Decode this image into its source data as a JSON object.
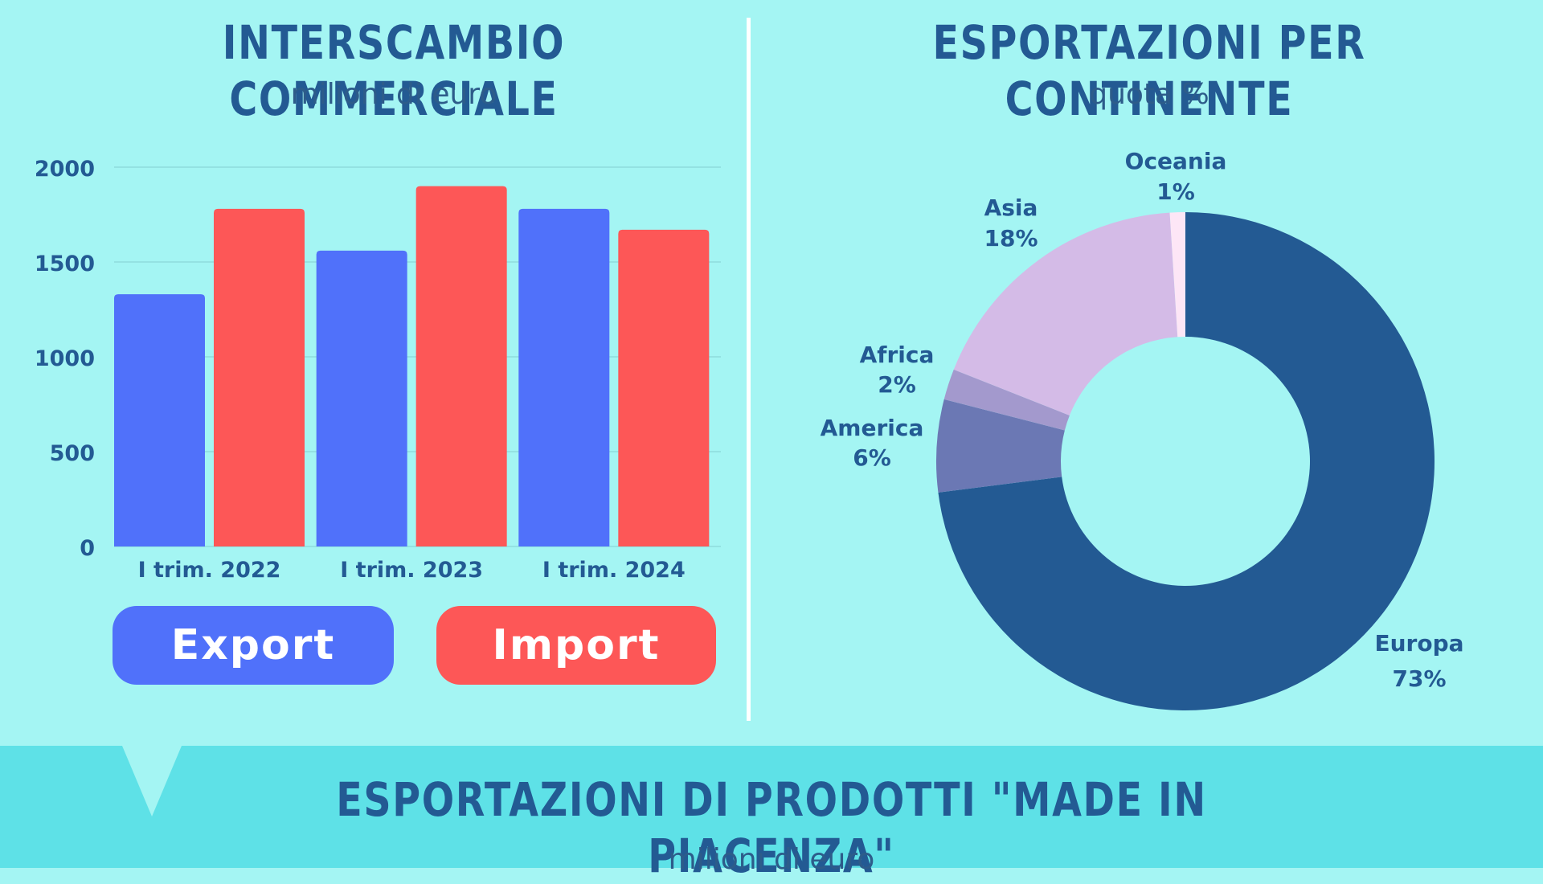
{
  "left_panel": {
    "title": "INTERSCAMBIO COMMERCIALE",
    "subtitle": "milioni di euro"
  },
  "right_panel": {
    "title": "ESPORTAZIONI PER CONTINENTE",
    "subtitle": "quota %"
  },
  "bottom_section": {
    "title": "ESPORTAZIONI DI PRODOTTI \"MADE IN PIACENZA\"",
    "subtitle": "milioni di euro"
  },
  "legend": {
    "export_label": "Export",
    "import_label": "Import"
  },
  "colors": {
    "export": "#5071fa",
    "import": "#fd5757",
    "europa": "#235a93",
    "america": "#6b78b4",
    "africa": "#a399cd",
    "asia": "#d4bbe7",
    "oceania": "#fde6f6",
    "title": "#235a93",
    "background": "#a4f5f3",
    "band": "#5ee1e7"
  },
  "chart_data": [
    {
      "type": "bar",
      "title": "INTERSCAMBIO COMMERCIALE",
      "subtitle": "milioni di euro",
      "categories": [
        "I trim. 2022",
        "I trim. 2023",
        "I trim. 2024"
      ],
      "series": [
        {
          "name": "Export",
          "values": [
            1330,
            1560,
            1780
          ]
        },
        {
          "name": "Import",
          "values": [
            1780,
            1900,
            1670
          ]
        }
      ],
      "ylim": [
        0,
        2000
      ],
      "yticks": [
        0,
        500,
        1000,
        1500,
        2000
      ],
      "grid": true,
      "legend": "bottom"
    },
    {
      "type": "pie",
      "title": "ESPORTAZIONI PER CONTINENTE",
      "subtitle": "quota %",
      "donut": true,
      "slices": [
        {
          "label": "Europa",
          "value": 73,
          "display": "73%"
        },
        {
          "label": "America",
          "value": 6,
          "display": "6%"
        },
        {
          "label": "Africa",
          "value": 2,
          "display": "2%"
        },
        {
          "label": "Asia",
          "value": 18,
          "display": "18%"
        },
        {
          "label": "Oceania",
          "value": 1,
          "display": "1%"
        }
      ]
    }
  ]
}
